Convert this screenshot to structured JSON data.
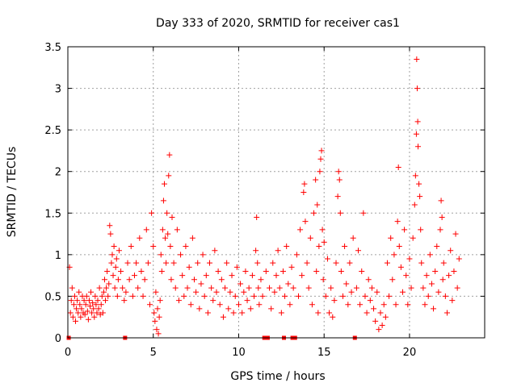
{
  "chart_data": {
    "type": "scatter",
    "title": "Day 333 of 2020, SRMTID for receiver cas1",
    "xlabel": "GPS time / hours",
    "ylabel": "SRMTID / TECUs",
    "xlim": [
      0,
      24.4
    ],
    "ylim": [
      0,
      3.5
    ],
    "x_ticks": [
      0,
      5,
      10,
      15,
      20
    ],
    "x_tick_labels": [
      "0",
      "5",
      "10",
      "15",
      "20"
    ],
    "y_ticks": [
      0,
      0.5,
      1,
      1.5,
      2,
      2.5,
      3,
      3.5
    ],
    "y_tick_labels": [
      "0",
      "0.5",
      "1",
      "1.5",
      "2",
      "2.5",
      "3",
      "3.5"
    ],
    "grid": true,
    "marker": "plus",
    "marker_color": "#ff0000",
    "gap_markers": {
      "marker": "square",
      "y": 0,
      "x": [
        0.05,
        3.35,
        11.5,
        11.7,
        12.65,
        13.15,
        13.3,
        16.8
      ]
    },
    "series": [
      {
        "name": "SRMTID",
        "points": [
          [
            0.1,
            0.85
          ],
          [
            0.15,
            0.3
          ],
          [
            0.2,
            0.45
          ],
          [
            0.25,
            0.6
          ],
          [
            0.3,
            0.25
          ],
          [
            0.35,
            0.4
          ],
          [
            0.4,
            0.5
          ],
          [
            0.45,
            0.2
          ],
          [
            0.5,
            0.35
          ],
          [
            0.55,
            0.45
          ],
          [
            0.6,
            0.3
          ],
          [
            0.65,
            0.55
          ],
          [
            0.7,
            0.4
          ],
          [
            0.75,
            0.25
          ],
          [
            0.8,
            0.35
          ],
          [
            0.85,
            0.5
          ],
          [
            0.9,
            0.3
          ],
          [
            0.95,
            0.45
          ],
          [
            1.0,
            0.28
          ],
          [
            1.05,
            0.4
          ],
          [
            1.1,
            0.5
          ],
          [
            1.15,
            0.32
          ],
          [
            1.2,
            0.22
          ],
          [
            1.25,
            0.45
          ],
          [
            1.3,
            0.38
          ],
          [
            1.35,
            0.55
          ],
          [
            1.4,
            0.3
          ],
          [
            1.45,
            0.42
          ],
          [
            1.5,
            0.35
          ],
          [
            1.55,
            0.25
          ],
          [
            1.6,
            0.5
          ],
          [
            1.65,
            0.4
          ],
          [
            1.7,
            0.3
          ],
          [
            1.75,
            0.45
          ],
          [
            1.8,
            0.35
          ],
          [
            1.85,
            0.6
          ],
          [
            1.9,
            0.28
          ],
          [
            1.95,
            0.4
          ],
          [
            2.0,
            0.5
          ],
          [
            2.05,
            0.3
          ],
          [
            2.1,
            0.55
          ],
          [
            2.15,
            0.7
          ],
          [
            2.2,
            0.45
          ],
          [
            2.25,
            0.6
          ],
          [
            2.3,
            0.8
          ],
          [
            2.35,
            0.5
          ],
          [
            2.4,
            0.65
          ],
          [
            2.45,
            1.35
          ],
          [
            2.5,
            1.25
          ],
          [
            2.55,
            0.9
          ],
          [
            2.6,
            1.0
          ],
          [
            2.65,
            0.75
          ],
          [
            2.7,
            1.1
          ],
          [
            2.75,
            0.6
          ],
          [
            2.8,
            0.85
          ],
          [
            2.85,
            0.95
          ],
          [
            2.9,
            0.5
          ],
          [
            2.95,
            0.7
          ],
          [
            3.0,
            1.05
          ],
          [
            3.1,
            0.8
          ],
          [
            3.2,
            0.6
          ],
          [
            3.3,
            0.45
          ],
          [
            3.4,
            0.55
          ],
          [
            3.5,
            0.9
          ],
          [
            3.6,
            0.7
          ],
          [
            3.7,
            1.1
          ],
          [
            3.8,
            0.5
          ],
          [
            3.9,
            0.75
          ],
          [
            4.0,
            0.9
          ],
          [
            4.1,
            0.6
          ],
          [
            4.2,
            1.2
          ],
          [
            4.3,
            0.8
          ],
          [
            4.4,
            0.5
          ],
          [
            4.5,
            0.7
          ],
          [
            4.6,
            1.3
          ],
          [
            4.7,
            0.9
          ],
          [
            4.8,
            0.4
          ],
          [
            4.9,
            1.5
          ],
          [
            5.0,
            1.1
          ],
          [
            5.05,
            0.3
          ],
          [
            5.1,
            0.2
          ],
          [
            5.15,
            0.55
          ],
          [
            5.2,
            0.1
          ],
          [
            5.25,
            0.35
          ],
          [
            5.3,
            0.05
          ],
          [
            5.35,
            0.25
          ],
          [
            5.4,
            0.45
          ],
          [
            5.45,
            1.0
          ],
          [
            5.5,
            0.8
          ],
          [
            5.55,
            1.3
          ],
          [
            5.6,
            1.65
          ],
          [
            5.65,
            1.85
          ],
          [
            5.7,
            1.2
          ],
          [
            5.75,
            0.9
          ],
          [
            5.8,
            1.5
          ],
          [
            5.85,
            1.25
          ],
          [
            5.9,
            1.95
          ],
          [
            5.95,
            2.2
          ],
          [
            6.0,
            1.1
          ],
          [
            6.05,
            0.7
          ],
          [
            6.1,
            1.45
          ],
          [
            6.2,
            0.9
          ],
          [
            6.3,
            0.6
          ],
          [
            6.4,
            1.3
          ],
          [
            6.5,
            0.45
          ],
          [
            6.6,
            1.0
          ],
          [
            6.7,
            0.75
          ],
          [
            6.8,
            0.5
          ],
          [
            6.9,
            1.1
          ],
          [
            7.0,
            0.6
          ],
          [
            7.1,
            0.85
          ],
          [
            7.2,
            0.4
          ],
          [
            7.3,
            1.2
          ],
          [
            7.4,
            0.7
          ],
          [
            7.5,
            0.55
          ],
          [
            7.6,
            0.9
          ],
          [
            7.7,
            0.35
          ],
          [
            7.8,
            0.65
          ],
          [
            7.9,
            1.0
          ],
          [
            8.0,
            0.5
          ],
          [
            8.1,
            0.75
          ],
          [
            8.2,
            0.3
          ],
          [
            8.3,
            0.9
          ],
          [
            8.4,
            0.6
          ],
          [
            8.5,
            0.45
          ],
          [
            8.6,
            1.05
          ],
          [
            8.7,
            0.55
          ],
          [
            8.8,
            0.8
          ],
          [
            8.9,
            0.4
          ],
          [
            9.0,
            0.7
          ],
          [
            9.1,
            0.25
          ],
          [
            9.2,
            0.6
          ],
          [
            9.3,
            0.9
          ],
          [
            9.4,
            0.35
          ],
          [
            9.5,
            0.55
          ],
          [
            9.6,
            0.75
          ],
          [
            9.7,
            0.3
          ],
          [
            9.8,
            0.5
          ],
          [
            9.9,
            0.85
          ],
          [
            10.0,
            0.4
          ],
          [
            10.1,
            0.65
          ],
          [
            10.2,
            0.3
          ],
          [
            10.3,
            0.55
          ],
          [
            10.4,
            0.8
          ],
          [
            10.5,
            0.45
          ],
          [
            10.6,
            0.6
          ],
          [
            10.7,
            0.35
          ],
          [
            10.8,
            0.75
          ],
          [
            10.9,
            0.5
          ],
          [
            11.0,
            1.05
          ],
          [
            11.05,
            1.45
          ],
          [
            11.1,
            0.9
          ],
          [
            11.15,
            0.6
          ],
          [
            11.2,
            0.4
          ],
          [
            11.3,
            0.7
          ],
          [
            11.4,
            0.5
          ],
          [
            11.6,
            0.8
          ],
          [
            11.8,
            0.6
          ],
          [
            11.9,
            0.35
          ],
          [
            12.0,
            0.9
          ],
          [
            12.1,
            0.55
          ],
          [
            12.2,
            0.75
          ],
          [
            12.3,
            1.05
          ],
          [
            12.4,
            0.6
          ],
          [
            12.5,
            0.3
          ],
          [
            12.6,
            0.8
          ],
          [
            12.7,
            0.5
          ],
          [
            12.8,
            1.1
          ],
          [
            12.9,
            0.65
          ],
          [
            13.0,
            0.4
          ],
          [
            13.1,
            0.85
          ],
          [
            13.2,
            0.6
          ],
          [
            13.4,
            1.0
          ],
          [
            13.5,
            0.5
          ],
          [
            13.6,
            1.3
          ],
          [
            13.7,
            0.75
          ],
          [
            13.8,
            1.75
          ],
          [
            13.85,
            1.85
          ],
          [
            13.9,
            1.4
          ],
          [
            14.0,
            0.9
          ],
          [
            14.1,
            0.6
          ],
          [
            14.2,
            1.2
          ],
          [
            14.3,
            0.4
          ],
          [
            14.4,
            1.5
          ],
          [
            14.5,
            1.9
          ],
          [
            14.55,
            0.8
          ],
          [
            14.6,
            1.6
          ],
          [
            14.65,
            0.3
          ],
          [
            14.7,
            1.1
          ],
          [
            14.75,
            2.0
          ],
          [
            14.8,
            2.15
          ],
          [
            14.85,
            2.25
          ],
          [
            14.9,
            1.3
          ],
          [
            14.95,
            0.7
          ],
          [
            15.0,
            1.15
          ],
          [
            15.1,
            0.5
          ],
          [
            15.2,
            0.95
          ],
          [
            15.3,
            0.3
          ],
          [
            15.4,
            0.6
          ],
          [
            15.5,
            0.25
          ],
          [
            15.6,
            0.45
          ],
          [
            15.7,
            0.9
          ],
          [
            15.8,
            1.7
          ],
          [
            15.85,
            2.0
          ],
          [
            15.9,
            1.9
          ],
          [
            15.95,
            1.5
          ],
          [
            16.0,
            0.8
          ],
          [
            16.1,
            0.5
          ],
          [
            16.2,
            1.1
          ],
          [
            16.3,
            0.65
          ],
          [
            16.4,
            0.4
          ],
          [
            16.5,
            0.9
          ],
          [
            16.6,
            0.55
          ],
          [
            16.7,
            1.2
          ],
          [
            16.9,
            0.6
          ],
          [
            17.0,
            1.05
          ],
          [
            17.1,
            0.4
          ],
          [
            17.2,
            0.8
          ],
          [
            17.3,
            1.5
          ],
          [
            17.4,
            0.5
          ],
          [
            17.5,
            0.3
          ],
          [
            17.6,
            0.7
          ],
          [
            17.7,
            0.45
          ],
          [
            17.8,
            0.6
          ],
          [
            17.9,
            0.35
          ],
          [
            18.0,
            0.2
          ],
          [
            18.1,
            0.55
          ],
          [
            18.2,
            0.1
          ],
          [
            18.3,
            0.3
          ],
          [
            18.4,
            0.15
          ],
          [
            18.5,
            0.4
          ],
          [
            18.6,
            0.25
          ],
          [
            18.7,
            0.9
          ],
          [
            18.8,
            0.5
          ],
          [
            18.9,
            1.2
          ],
          [
            19.0,
            0.7
          ],
          [
            19.1,
            1.0
          ],
          [
            19.2,
            0.4
          ],
          [
            19.3,
            1.4
          ],
          [
            19.35,
            2.05
          ],
          [
            19.4,
            1.1
          ],
          [
            19.5,
            0.85
          ],
          [
            19.6,
            0.55
          ],
          [
            19.7,
            1.3
          ],
          [
            19.8,
            0.75
          ],
          [
            19.9,
            0.4
          ],
          [
            20.0,
            0.95
          ],
          [
            20.1,
            0.6
          ],
          [
            20.2,
            1.2
          ],
          [
            20.3,
            1.6
          ],
          [
            20.35,
            1.95
          ],
          [
            20.4,
            2.45
          ],
          [
            20.42,
            3.35
          ],
          [
            20.45,
            3.0
          ],
          [
            20.48,
            2.6
          ],
          [
            20.5,
            2.3
          ],
          [
            20.55,
            1.85
          ],
          [
            20.6,
            1.7
          ],
          [
            20.65,
            1.3
          ],
          [
            20.7,
            0.9
          ],
          [
            20.8,
            0.6
          ],
          [
            20.9,
            0.4
          ],
          [
            21.0,
            0.75
          ],
          [
            21.1,
            0.5
          ],
          [
            21.2,
            1.0
          ],
          [
            21.3,
            0.65
          ],
          [
            21.4,
            0.35
          ],
          [
            21.5,
            0.8
          ],
          [
            21.6,
            1.1
          ],
          [
            21.7,
            0.55
          ],
          [
            21.8,
            1.3
          ],
          [
            21.85,
            1.65
          ],
          [
            21.9,
            1.45
          ],
          [
            21.95,
            0.7
          ],
          [
            22.0,
            0.9
          ],
          [
            22.1,
            0.5
          ],
          [
            22.2,
            0.3
          ],
          [
            22.3,
            0.75
          ],
          [
            22.4,
            1.05
          ],
          [
            22.5,
            0.45
          ],
          [
            22.6,
            0.8
          ],
          [
            22.7,
            1.25
          ],
          [
            22.8,
            0.6
          ],
          [
            22.9,
            0.95
          ]
        ]
      }
    ]
  }
}
